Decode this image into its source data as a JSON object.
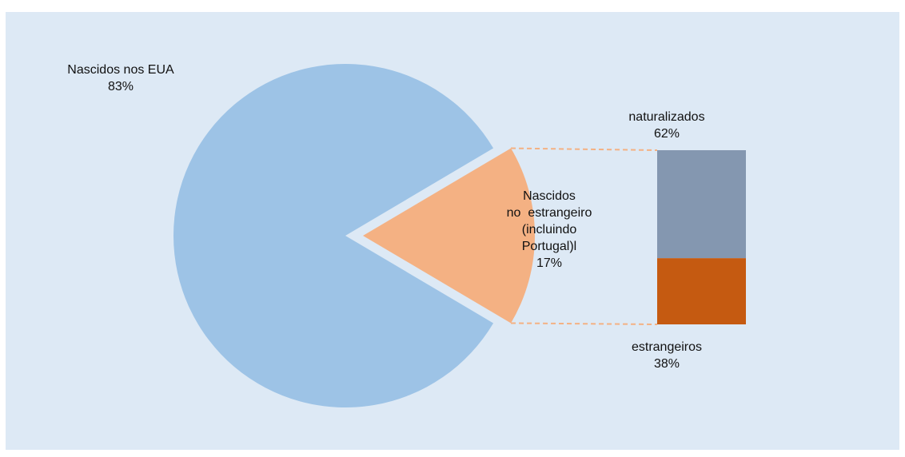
{
  "chart_data": {
    "type": "pie",
    "slices": [
      {
        "label": "Nascidos nos EUA",
        "value": 83,
        "value_label": "83%",
        "color": "#9dc3e6",
        "exploded": false
      },
      {
        "label_lines": [
          "Nascidos",
          "no  estrangeiro",
          "(incluindo",
          "Portugal)l"
        ],
        "value": 17,
        "value_label": "17%",
        "color": "#f4b183",
        "exploded": true
      }
    ],
    "breakdown": {
      "type": "stacked-bar",
      "of": "Nascidos no estrangeiro",
      "segments": [
        {
          "label": "naturalizados",
          "value": 62,
          "value_label": "62%",
          "color": "#8497b0"
        },
        {
          "label": "estrangeiros",
          "value": 38,
          "value_label": "38%",
          "color": "#c55a11"
        }
      ]
    },
    "connector_color": "#f4b183",
    "background": "#dde9f5"
  }
}
